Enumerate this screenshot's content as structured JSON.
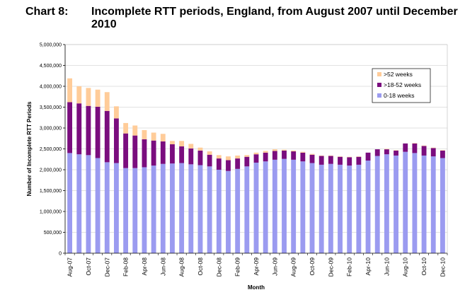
{
  "title": {
    "prefix": "Chart 8:",
    "line1": "Incomplete RTT periods, England, from August 2007 until December",
    "line2": "2010"
  },
  "chart_data": {
    "type": "bar",
    "stacked": true,
    "xlabel": "Month",
    "ylabel": "Number of Incomplete RTT Periods",
    "ylim": [
      0,
      5000000
    ],
    "yticks": [
      "0",
      "500,000",
      "1,000,000",
      "1,500,000",
      "2,000,000",
      "2,500,000",
      "3,000,000",
      "3,500,000",
      "4,000,000",
      "4,500,000",
      "5,000,000"
    ],
    "categories": [
      "Aug-07",
      "Sep-07",
      "Oct-07",
      "Nov-07",
      "Dec-07",
      "Jan-08",
      "Feb-08",
      "Mar-08",
      "Apr-08",
      "May-08",
      "Jun-08",
      "Jul-08",
      "Aug-08",
      "Sep-08",
      "Oct-08",
      "Nov-08",
      "Dec-08",
      "Jan-09",
      "Feb-09",
      "Mar-09",
      "Apr-09",
      "May-09",
      "Jun-09",
      "Jul-09",
      "Aug-09",
      "Sep-09",
      "Oct-09",
      "Nov-09",
      "Dec-09",
      "Jan-10",
      "Feb-10",
      "Mar-10",
      "Apr-10",
      "May-10",
      "Jun-10",
      "Jul-10",
      "Aug-10",
      "Sep-10",
      "Oct-10",
      "Nov-10",
      "Dec-10"
    ],
    "x_tick_labels": [
      "Aug-07",
      "Oct-07",
      "Dec-07",
      "Feb-08",
      "Apr-08",
      "Jun-08",
      "Aug-08",
      "Oct-08",
      "Dec-08",
      "Feb-09",
      "Apr-09",
      "Jun-09",
      "Aug-09",
      "Oct-09",
      "Dec-09",
      "Feb-10",
      "Apr-10",
      "Jun-10",
      "Aug-10",
      "Oct-10",
      "Dec-10"
    ],
    "legend_position": "top-right",
    "series": [
      {
        "name": "0-18 weeks",
        "color": "#9b9bf0",
        "values": [
          2400000,
          2370000,
          2350000,
          2280000,
          2180000,
          2160000,
          2040000,
          2040000,
          2060000,
          2100000,
          2140000,
          2150000,
          2160000,
          2130000,
          2110000,
          2080000,
          2000000,
          1970000,
          2020000,
          2080000,
          2170000,
          2200000,
          2240000,
          2260000,
          2240000,
          2200000,
          2160000,
          2120000,
          2140000,
          2120000,
          2100000,
          2120000,
          2220000,
          2330000,
          2370000,
          2340000,
          2430000,
          2400000,
          2340000,
          2320000,
          2280000
        ]
      },
      {
        "name": ">18-52 weeks",
        "color": "#7a0d7e",
        "values": [
          1220000,
          1220000,
          1180000,
          1230000,
          1230000,
          1070000,
          830000,
          780000,
          670000,
          600000,
          540000,
          460000,
          400000,
          380000,
          350000,
          280000,
          270000,
          260000,
          250000,
          230000,
          200000,
          210000,
          210000,
          200000,
          200000,
          210000,
          200000,
          210000,
          190000,
          190000,
          200000,
          190000,
          190000,
          160000,
          120000,
          120000,
          200000,
          230000,
          230000,
          200000,
          180000
        ]
      },
      {
        "name": ">52 weeks",
        "color": "#ffcc99",
        "values": [
          570000,
          410000,
          430000,
          410000,
          450000,
          290000,
          250000,
          240000,
          220000,
          190000,
          180000,
          80000,
          130000,
          110000,
          70000,
          80000,
          80000,
          90000,
          70000,
          40000,
          40000,
          40000,
          40000,
          20000,
          20000,
          20000,
          20000,
          10000,
          10000,
          10000,
          10000,
          10000,
          0,
          0,
          10000,
          10000,
          0,
          10000,
          10000,
          10000,
          10000
        ]
      }
    ]
  }
}
